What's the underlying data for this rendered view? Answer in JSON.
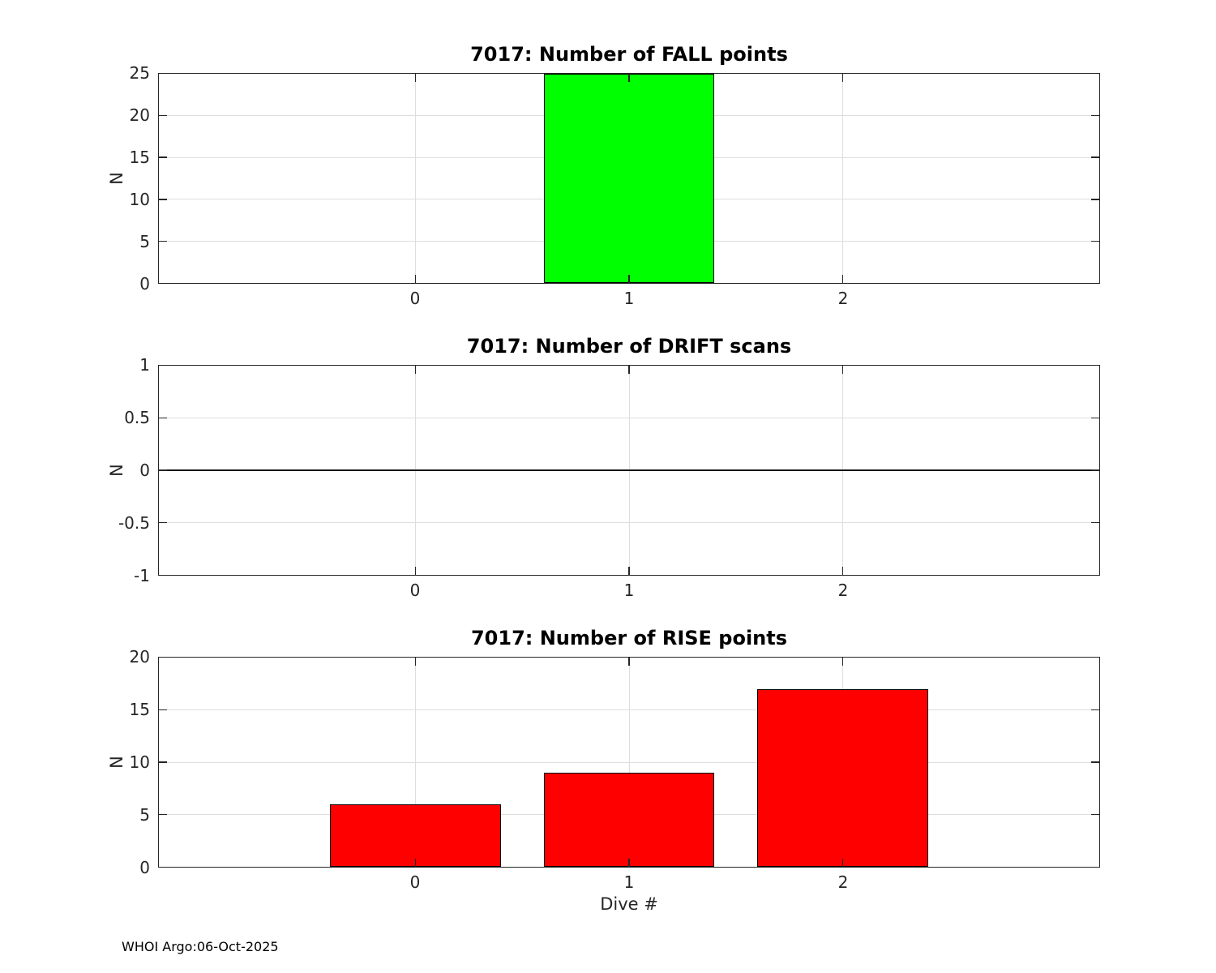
{
  "figure": {
    "footer": "WHOI Argo:06-Oct-2025",
    "background": "#ffffff"
  },
  "style": {
    "grid_color": "#dedede",
    "axis_color": "#262626",
    "bar_edge_color": "#000000",
    "zero_line_color": "#0a0a0a",
    "title_color": "#000000"
  },
  "chart_data": [
    {
      "type": "bar",
      "title": "7017: Number of FALL points",
      "xlabel": "",
      "ylabel": "N",
      "categories": [
        "0",
        "1",
        "2"
      ],
      "values": [
        0,
        25,
        0
      ],
      "ylim": [
        0,
        25
      ],
      "yticks": [
        0,
        5,
        10,
        15,
        20,
        25
      ],
      "xticks": [
        "0",
        "1",
        "2"
      ],
      "bar_color": "#00ff00",
      "grid": true,
      "legend": null
    },
    {
      "type": "bar",
      "title": "7017: Number of DRIFT scans",
      "xlabel": "",
      "ylabel": "N",
      "categories": [
        "0",
        "1",
        "2"
      ],
      "values": [
        0,
        0,
        0
      ],
      "ylim": [
        -1,
        1
      ],
      "yticks": [
        -1,
        -0.5,
        0,
        0.5,
        1
      ],
      "xticks": [
        "0",
        "1",
        "2"
      ],
      "bar_color": "#00ff00",
      "grid": true,
      "zero_line": true,
      "legend": null
    },
    {
      "type": "bar",
      "title": "7017: Number of RISE points",
      "xlabel": "Dive #",
      "ylabel": "N",
      "categories": [
        "0",
        "1",
        "2"
      ],
      "values": [
        6,
        9,
        17
      ],
      "ylim": [
        0,
        20
      ],
      "yticks": [
        0,
        5,
        10,
        15,
        20
      ],
      "xticks": [
        "0",
        "1",
        "2"
      ],
      "bar_color": "#ff0000",
      "grid": true,
      "legend": null
    }
  ]
}
